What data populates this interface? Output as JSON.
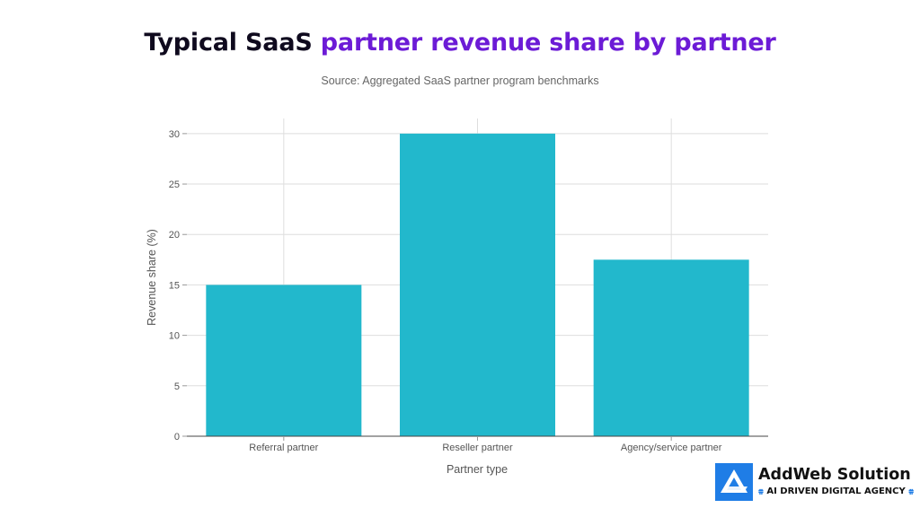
{
  "chart_data": {
    "type": "bar",
    "title": "Typical SaaS partner revenue share by partner",
    "subtitle": "Source: Aggregated SaaS partner program benchmarks",
    "categories": [
      "Referral partner",
      "Reseller partner",
      "Agency/service partner"
    ],
    "values": [
      15,
      30,
      17.5
    ],
    "xlabel": "Partner type",
    "ylabel": "Revenue share (%)",
    "ylim": [
      0,
      31.5
    ],
    "yticks": [
      0,
      5,
      10,
      15,
      20,
      25,
      30
    ],
    "grid": true,
    "bar_color": "#22b8cc",
    "title_colors": [
      "#0f0a1e",
      "#6c1bd6"
    ]
  },
  "title_parts": {
    "dark": "Typical SaaS ",
    "accent": "partner revenue share by partner"
  },
  "logo": {
    "name": "AddWeb Solution",
    "tagline_arrow_left": "⩷",
    "tagline": "AI DRIVEN DIGITAL AGENCY",
    "tagline_arrow_right": "⩷",
    "icon": "addweb-logo-icon"
  }
}
